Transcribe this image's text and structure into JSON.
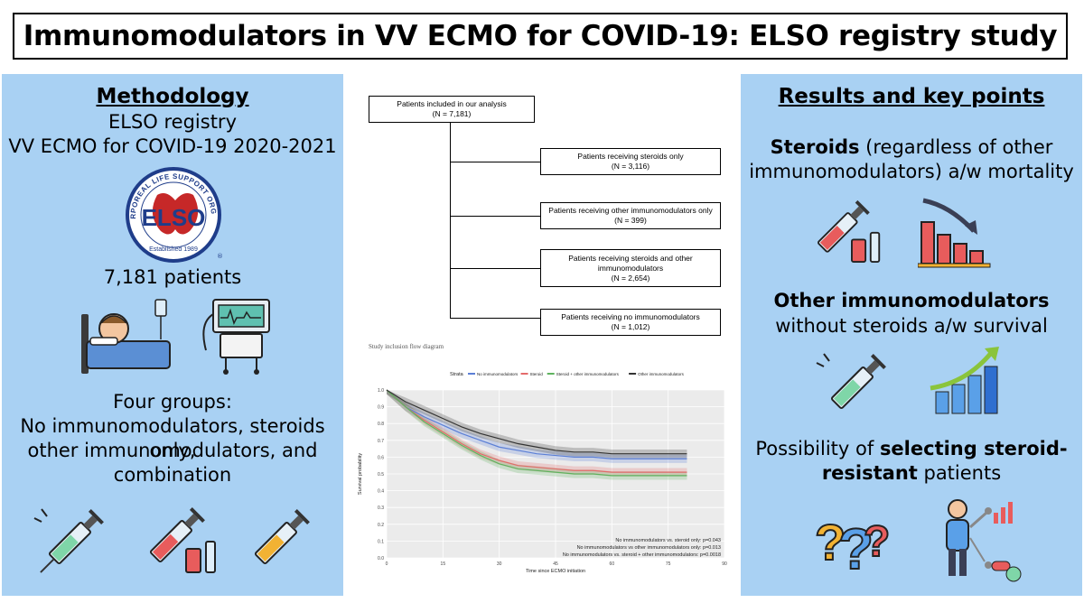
{
  "title": "Immunomodulators in VV ECMO for COVID-19: ELSO registry study",
  "methodology": {
    "heading": "Methodology",
    "line1": "ELSO registry",
    "line2": "VV ECMO for COVID-19 2020-2021",
    "logo": {
      "arc_text": "EXTRACORPOREAL LIFE SUPPORT ORGANIZATION",
      "letters": "ELSO",
      "established": "Established 1989",
      "reg": "®"
    },
    "patients": "7,181 patients",
    "groups_l1": "Four groups:",
    "groups_l2": "No immunomodulators, steroids only,",
    "groups_l3": "other immunomodulators, and",
    "groups_l4": "combination",
    "icons": [
      "patient-bed-icon",
      "ventilator-icon",
      "syringe-icon",
      "syringe-vial-icon",
      "syringe-icon"
    ]
  },
  "flow": {
    "root_l1": "Patients included in our analysis",
    "root_l2": "(N = 7,181)",
    "boxes": [
      {
        "l1": "Patients receiving steroids only",
        "l2": "(N = 3,116)"
      },
      {
        "l1": "Patients receiving other immunomodulators only",
        "l2": "(N = 399)"
      },
      {
        "l1": "Patients receiving steroids and other",
        "l1b": "immunomodulators",
        "l2": "(N = 2,654)"
      },
      {
        "l1": "Patients receiving no immunomodulators",
        "l2": "(N = 1,012)"
      }
    ],
    "caption": "Study inclusion flow diagram"
  },
  "chart_data": {
    "type": "line",
    "legend_title": "Strata",
    "series": [
      {
        "name": "No immunomodulators",
        "color": "#5b7fd6",
        "x": [
          0,
          5,
          10,
          15,
          20,
          25,
          30,
          35,
          40,
          45,
          50,
          55,
          60,
          65,
          70,
          75,
          80
        ],
        "y": [
          1.0,
          0.9,
          0.84,
          0.79,
          0.74,
          0.7,
          0.66,
          0.64,
          0.62,
          0.61,
          0.6,
          0.6,
          0.59,
          0.59,
          0.59,
          0.59,
          0.59
        ]
      },
      {
        "name": "Steroid",
        "color": "#e46a6a",
        "x": [
          0,
          5,
          10,
          15,
          20,
          25,
          30,
          35,
          40,
          45,
          50,
          55,
          60,
          65,
          70,
          75,
          80
        ],
        "y": [
          1.0,
          0.9,
          0.82,
          0.75,
          0.68,
          0.62,
          0.58,
          0.55,
          0.54,
          0.53,
          0.52,
          0.52,
          0.51,
          0.51,
          0.51,
          0.51,
          0.51
        ]
      },
      {
        "name": "Steroid + other immunomodulators",
        "color": "#5fb35f",
        "x": [
          0,
          5,
          10,
          15,
          20,
          25,
          30,
          35,
          40,
          45,
          50,
          55,
          60,
          65,
          70,
          75,
          80
        ],
        "y": [
          1.0,
          0.9,
          0.81,
          0.74,
          0.67,
          0.61,
          0.56,
          0.53,
          0.52,
          0.51,
          0.5,
          0.5,
          0.49,
          0.49,
          0.49,
          0.49,
          0.49
        ]
      },
      {
        "name": "Other immunomodulators",
        "color": "#333333",
        "x": [
          0,
          5,
          10,
          15,
          20,
          25,
          30,
          35,
          40,
          45,
          50,
          55,
          60,
          65,
          70,
          75,
          80
        ],
        "y": [
          1.0,
          0.93,
          0.88,
          0.83,
          0.78,
          0.74,
          0.71,
          0.68,
          0.66,
          0.64,
          0.63,
          0.63,
          0.62,
          0.62,
          0.62,
          0.62,
          0.62
        ]
      }
    ],
    "x_ticks": [
      "0",
      "15",
      "30",
      "45",
      "60",
      "75",
      "90"
    ],
    "x_tick_values": [
      0,
      15,
      30,
      45,
      60,
      75,
      90
    ],
    "y_ticks": [
      "0.0",
      "0.1",
      "0.2",
      "0.3",
      "0.4",
      "0.5",
      "0.6",
      "0.7",
      "0.8",
      "0.9",
      "1.0"
    ],
    "y_tick_values": [
      0,
      0.1,
      0.2,
      0.3,
      0.4,
      0.5,
      0.6,
      0.7,
      0.8,
      0.9,
      1.0
    ],
    "xlim": [
      0,
      90
    ],
    "ylim": [
      0,
      1.0
    ],
    "xlabel": "Time since ECMO initiation",
    "ylabel": "Survival probability",
    "grid": true,
    "legend_position": "top",
    "annotations": [
      "No immunomodulators vs. steroid only: p=0.043",
      "No immunomodulators vs other immunomodulators only: p=0.013",
      "No immunomodulators vs. steroid + other immunomodulators: p=0.0018"
    ]
  },
  "results": {
    "heading": "Results and key points",
    "steroids_bold": "Steroids",
    "steroids_rest1": " (regardless of other",
    "steroids_rest2": "immunomodulators) a/w mortality",
    "other_bold": "Other immunomodulators",
    "other_rest": "without steroids a/w survival",
    "possibility_pre": "Possibility of ",
    "possibility_bold1": "selecting steroid-",
    "possibility_bold2": "resistant",
    "possibility_post": " patients",
    "icons": [
      "syringe-vial-icon",
      "declining-chart-icon",
      "syringe-icon",
      "rising-chart-icon",
      "question-marks-icon",
      "person-pills-icon"
    ]
  },
  "colors": {
    "panel": "#a9d1f3",
    "title_border": "#000000"
  }
}
